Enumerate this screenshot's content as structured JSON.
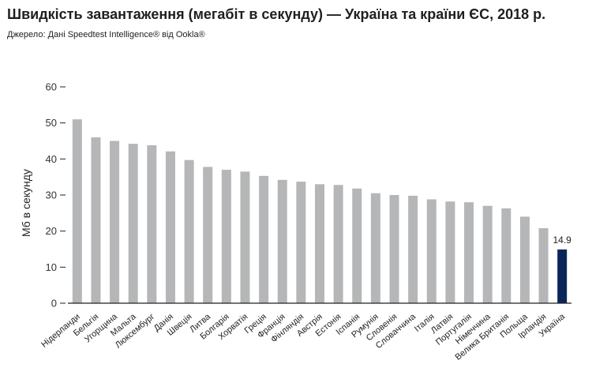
{
  "header": {
    "title": "Швидкість завантаження (мегабіт в секунду) — Україна та країни ЄС, 2018 р.",
    "source": "Джерело: Дані Speedtest Intelligence® від Ookla®"
  },
  "colors": {
    "bar": "#b5b6b8",
    "highlight": "#0c2558",
    "axis": "#222222"
  },
  "chart_data": {
    "type": "bar",
    "title": "Швидкість завантаження (мегабіт в секунду) — Україна та країни ЄС, 2018 р.",
    "xlabel": "",
    "ylabel": "Мб в секунду",
    "ylim": [
      0,
      60
    ],
    "yticks": [
      0,
      10,
      20,
      30,
      40,
      50,
      60
    ],
    "grid": false,
    "highlight": "Україна",
    "categories": [
      "Нідерланди",
      "Бельгія",
      "Угорщина",
      "Мальта",
      "Люксембург",
      "Данія",
      "Швеція",
      "Литва",
      "Болгарія",
      "Хорватія",
      "Греція",
      "Франція",
      "Фінляндія",
      "Австрія",
      "Естонія",
      "Іспанія",
      "Румунія",
      "Словенія",
      "Словаччина",
      "Італія",
      "Латвія",
      "Португалія",
      "Німеччина",
      "Велика Британія",
      "Польща",
      "Ірландія",
      "Україна"
    ],
    "values": [
      51,
      46,
      45,
      44.2,
      43.8,
      42.1,
      39.7,
      37.8,
      37,
      36.5,
      35.3,
      34.2,
      33.7,
      33,
      32.8,
      31.8,
      30.5,
      30,
      29.8,
      28.8,
      28.2,
      28,
      27,
      26.3,
      24,
      20.8,
      14.9
    ],
    "data_labels": [
      {
        "category": "Україна",
        "text": "14.9"
      }
    ]
  }
}
